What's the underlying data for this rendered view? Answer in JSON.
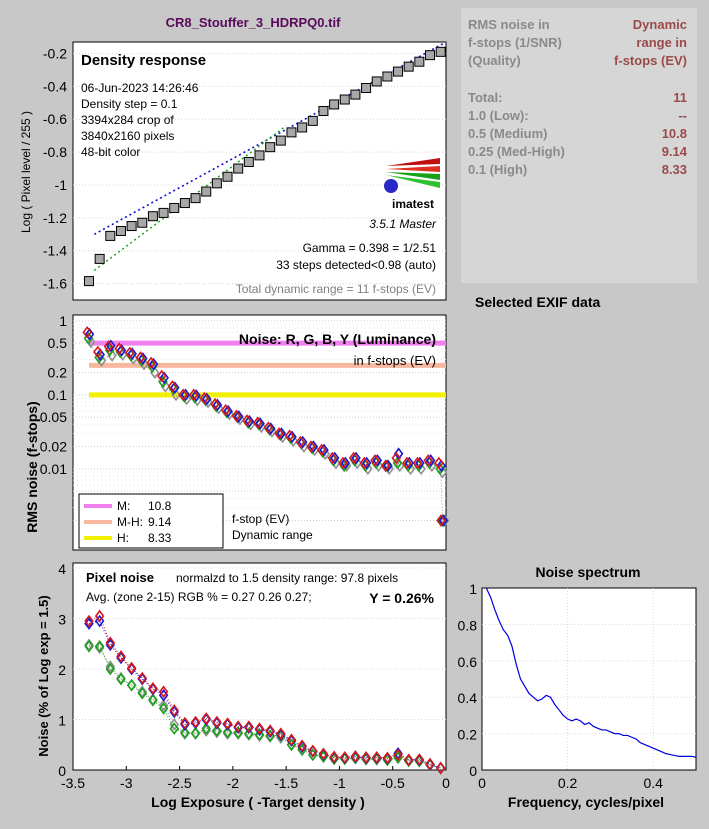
{
  "figure": {
    "filename": "CR8_Stouffer_3_HDRPQ0.tif",
    "xlabel": "Log Exposure ( -Target density )",
    "logo_text": "imatest",
    "version": "3.5.1  Master",
    "exif_heading": "Selected EXIF data"
  },
  "info_table": {
    "col1_header": [
      "RMS noise in",
      "f-stops (1/SNR)",
      "(Quality)"
    ],
    "col2_header": [
      "Dynamic",
      "range in",
      "f-stops (EV)"
    ],
    "rows": [
      {
        "label": "Total:",
        "value": "11"
      },
      {
        "label": "1.0   (Low):",
        "value": "--"
      },
      {
        "label": "0.5   (Medium)",
        "value": "10.8"
      },
      {
        "label": "0.25 (Med-High)",
        "value": "9.14"
      },
      {
        "label": "0.1   (High)",
        "value": "8.33"
      }
    ]
  },
  "chart_data": [
    {
      "type": "scatter",
      "title": "Density response",
      "ylabel": "Log ( Pixel level / 255 )",
      "xlim": [
        -3.5,
        0
      ],
      "ylim": [
        -1.7,
        -0.13
      ],
      "yticks": [
        -0.2,
        -0.4,
        -0.6,
        -0.8,
        -1,
        -1.2,
        -1.4,
        -1.6
      ],
      "annotations": [
        "06-Jun-2023 14:26:46",
        "Density step = 0.1",
        "3394x284 crop of",
        "3840x2160 pixels",
        "48-bit color"
      ],
      "gamma_text": "Gamma = 0.398 = 1/2.51",
      "steps_text": "33 steps detected<0.98 (auto)",
      "total_dr_text": "Total dynamic range = 11 f-stops (EV)",
      "x": [
        -3.35,
        -3.25,
        -3.15,
        -3.05,
        -2.95,
        -2.85,
        -2.75,
        -2.65,
        -2.55,
        -2.45,
        -2.35,
        -2.25,
        -2.15,
        -2.05,
        -1.95,
        -1.85,
        -1.75,
        -1.65,
        -1.55,
        -1.45,
        -1.35,
        -1.25,
        -1.15,
        -1.05,
        -0.95,
        -0.85,
        -0.75,
        -0.65,
        -0.55,
        -0.45,
        -0.35,
        -0.25,
        -0.15,
        -0.05
      ],
      "y": [
        -1.585,
        -1.45,
        -1.31,
        -1.28,
        -1.25,
        -1.23,
        -1.19,
        -1.17,
        -1.14,
        -1.11,
        -1.08,
        -1.04,
        -0.99,
        -0.95,
        -0.9,
        -0.86,
        -0.82,
        -0.77,
        -0.73,
        -0.68,
        -0.65,
        -0.61,
        -0.55,
        -0.51,
        -0.48,
        -0.45,
        -0.41,
        -0.37,
        -0.34,
        -0.31,
        -0.28,
        -0.25,
        -0.21,
        -0.19
      ],
      "fit_blue": {
        "x": [
          -3.3,
          0
        ],
        "y": [
          -1.3,
          -0.13
        ]
      },
      "fit_green": {
        "x": [
          -3.3,
          -1.5
        ],
        "y": [
          -1.52,
          -0.64
        ]
      }
    },
    {
      "type": "scatter",
      "title": "Noise: R, G, B, Y (Luminance)",
      "subtitle": "in f-stops (EV)",
      "ylabel": "RMS noise (f-stops)",
      "yscale": "log",
      "xlim": [
        -3.5,
        0
      ],
      "ylim": [
        0.0008,
        1.2
      ],
      "yticks": [
        1,
        0.5,
        0.2,
        0.1,
        0.05,
        0.02,
        0.01
      ],
      "ytick_labels": [
        "1",
        "0.5",
        "0.2",
        "0.1",
        "0.05",
        "0.02",
        "0.01"
      ],
      "thresholds": [
        {
          "value": 0.5,
          "color": "#f080f0"
        },
        {
          "value": 0.25,
          "color": "#f8b8a0"
        },
        {
          "value": 0.1,
          "color": "#f0f000"
        }
      ],
      "legend": [
        {
          "label": "M:",
          "value": "10.8",
          "color": "#f080f0"
        },
        {
          "label": "M-H:",
          "value": "9.14",
          "color": "#f8b8a0"
        },
        {
          "label": "H:",
          "value": "8.33",
          "color": "#f0f000"
        }
      ],
      "legend_note": [
        "f-stop (EV)",
        "Dynamic range"
      ],
      "x": [
        -3.35,
        -3.25,
        -3.15,
        -3.05,
        -2.95,
        -2.85,
        -2.75,
        -2.65,
        -2.55,
        -2.45,
        -2.35,
        -2.25,
        -2.15,
        -2.05,
        -1.95,
        -1.85,
        -1.75,
        -1.65,
        -1.55,
        -1.45,
        -1.35,
        -1.25,
        -1.15,
        -1.05,
        -0.95,
        -0.85,
        -0.75,
        -0.65,
        -0.55,
        -0.45,
        -0.35,
        -0.25,
        -0.15,
        -0.05,
        -0.03
      ],
      "series": [
        {
          "name": "R",
          "color": "#d81818",
          "values": [
            0.7,
            0.38,
            0.45,
            0.42,
            0.37,
            0.32,
            0.27,
            0.18,
            0.13,
            0.1,
            0.1,
            0.09,
            0.075,
            0.062,
            0.052,
            0.045,
            0.042,
            0.036,
            0.03,
            0.028,
            0.023,
            0.02,
            0.018,
            0.014,
            0.012,
            0.014,
            0.012,
            0.013,
            0.011,
            0.014,
            0.012,
            0.012,
            0.013,
            0.012,
            0.002
          ]
        },
        {
          "name": "G",
          "color": "#18a018",
          "values": [
            0.58,
            0.32,
            0.4,
            0.38,
            0.34,
            0.29,
            0.24,
            0.15,
            0.12,
            0.095,
            0.092,
            0.085,
            0.07,
            0.058,
            0.05,
            0.042,
            0.04,
            0.034,
            0.029,
            0.026,
            0.022,
            0.019,
            0.017,
            0.013,
            0.011,
            0.013,
            0.011,
            0.012,
            0.011,
            0.012,
            0.011,
            0.011,
            0.012,
            0.01,
            0.002
          ]
        },
        {
          "name": "B",
          "color": "#1818d8",
          "values": [
            0.66,
            0.35,
            0.46,
            0.4,
            0.36,
            0.31,
            0.26,
            0.17,
            0.125,
            0.1,
            0.098,
            0.088,
            0.073,
            0.06,
            0.051,
            0.044,
            0.041,
            0.035,
            0.03,
            0.027,
            0.023,
            0.02,
            0.018,
            0.014,
            0.012,
            0.014,
            0.012,
            0.013,
            0.011,
            0.016,
            0.012,
            0.012,
            0.013,
            0.011,
            0.002
          ]
        },
        {
          "name": "Y",
          "color": "#909090",
          "values": [
            0.52,
            0.29,
            0.34,
            0.35,
            0.31,
            0.26,
            0.2,
            0.13,
            0.1,
            0.088,
            0.085,
            0.08,
            0.066,
            0.055,
            0.047,
            0.04,
            0.037,
            0.032,
            0.027,
            0.024,
            0.02,
            0.018,
            0.016,
            0.012,
            0.011,
            0.012,
            0.01,
            0.011,
            0.01,
            0.011,
            0.01,
            0.01,
            0.011,
            0.009,
            0.002
          ]
        }
      ]
    },
    {
      "type": "scatter",
      "title": "Pixel noise",
      "subtitle": "normalzd to 1.5 density range: 97.8 pixels",
      "stats_text": "Avg. (zone 2-15) RGB % = 0.27  0.26  0.27;",
      "y_summary": "Y = 0.26%",
      "ylabel": "Noise (% of Log exp = 1.5)",
      "xlabel": "Log Exposure ( -Target density )",
      "xlim": [
        -3.5,
        0
      ],
      "ylim": [
        0,
        4.1
      ],
      "xticks": [
        -3.5,
        -3,
        -2.5,
        -2,
        -1.5,
        -1,
        -0.5,
        0
      ],
      "yticks": [
        0,
        1,
        2,
        3,
        4
      ],
      "x": [
        -3.35,
        -3.25,
        -3.15,
        -3.05,
        -2.95,
        -2.85,
        -2.75,
        -2.65,
        -2.55,
        -2.45,
        -2.35,
        -2.25,
        -2.15,
        -2.05,
        -1.95,
        -1.85,
        -1.75,
        -1.65,
        -1.55,
        -1.45,
        -1.35,
        -1.25,
        -1.15,
        -1.05,
        -0.95,
        -0.85,
        -0.75,
        -0.65,
        -0.55,
        -0.45,
        -0.35,
        -0.25,
        -0.15,
        -0.05
      ],
      "series": [
        {
          "name": "R",
          "color": "#d81818",
          "values": [
            2.95,
            3.05,
            2.52,
            2.25,
            2.02,
            1.82,
            1.62,
            1.55,
            1.18,
            0.93,
            0.95,
            1.02,
            0.95,
            0.92,
            0.86,
            0.86,
            0.82,
            0.78,
            0.72,
            0.6,
            0.48,
            0.38,
            0.32,
            0.26,
            0.25,
            0.27,
            0.25,
            0.25,
            0.24,
            0.3,
            0.2,
            0.21,
            0.12,
            0.04
          ]
        },
        {
          "name": "G",
          "color": "#18a018",
          "values": [
            2.45,
            2.45,
            2.0,
            1.8,
            1.68,
            1.52,
            1.38,
            1.22,
            0.82,
            0.74,
            0.73,
            0.82,
            0.78,
            0.75,
            0.74,
            0.72,
            0.7,
            0.68,
            0.68,
            0.5,
            0.4,
            0.3,
            0.27,
            0.22,
            0.22,
            0.24,
            0.22,
            0.22,
            0.2,
            0.25,
            0.18,
            0.18,
            0.1,
            0.04
          ]
        },
        {
          "name": "B",
          "color": "#1818d8",
          "values": [
            2.9,
            2.95,
            2.48,
            2.22,
            2.0,
            1.8,
            1.6,
            1.48,
            1.15,
            0.9,
            0.93,
            1.0,
            0.93,
            0.9,
            0.84,
            0.84,
            0.8,
            0.76,
            0.7,
            0.58,
            0.46,
            0.37,
            0.31,
            0.25,
            0.24,
            0.26,
            0.24,
            0.24,
            0.23,
            0.33,
            0.2,
            0.2,
            0.11,
            0.04
          ]
        },
        {
          "name": "Y",
          "color": "#909090",
          "values": [
            2.48,
            2.42,
            2.05,
            1.82,
            1.68,
            1.55,
            1.4,
            1.28,
            0.9,
            0.72,
            0.72,
            0.78,
            0.75,
            0.72,
            0.72,
            0.7,
            0.68,
            0.66,
            0.64,
            0.5,
            0.4,
            0.3,
            0.26,
            0.22,
            0.22,
            0.23,
            0.21,
            0.21,
            0.2,
            0.24,
            0.18,
            0.17,
            0.1,
            0.03
          ]
        }
      ]
    },
    {
      "type": "line",
      "title": "Noise spectrum",
      "xlabel": "Frequency, cycles/pixel",
      "xlim": [
        0,
        0.5
      ],
      "ylim": [
        0,
        1
      ],
      "xticks": [
        0,
        0.2,
        0.4
      ],
      "yticks": [
        0,
        0.2,
        0.4,
        0.6,
        0.8,
        1
      ],
      "series": [
        {
          "name": "",
          "color": "#0000e0",
          "x": [
            0.01,
            0.02,
            0.03,
            0.04,
            0.05,
            0.06,
            0.07,
            0.08,
            0.09,
            0.1,
            0.11,
            0.12,
            0.13,
            0.14,
            0.15,
            0.16,
            0.17,
            0.18,
            0.19,
            0.2,
            0.21,
            0.22,
            0.23,
            0.24,
            0.25,
            0.26,
            0.27,
            0.28,
            0.29,
            0.3,
            0.31,
            0.32,
            0.33,
            0.34,
            0.35,
            0.36,
            0.37,
            0.38,
            0.39,
            0.4,
            0.41,
            0.42,
            0.43,
            0.44,
            0.45,
            0.46,
            0.47,
            0.48,
            0.49,
            0.5
          ],
          "y": [
            1.0,
            0.95,
            0.88,
            0.82,
            0.77,
            0.74,
            0.68,
            0.58,
            0.5,
            0.46,
            0.42,
            0.4,
            0.38,
            0.39,
            0.41,
            0.4,
            0.36,
            0.33,
            0.3,
            0.28,
            0.27,
            0.28,
            0.27,
            0.25,
            0.26,
            0.24,
            0.23,
            0.22,
            0.22,
            0.21,
            0.2,
            0.2,
            0.19,
            0.19,
            0.18,
            0.17,
            0.15,
            0.14,
            0.13,
            0.12,
            0.11,
            0.1,
            0.09,
            0.085,
            0.08,
            0.075,
            0.075,
            0.075,
            0.075,
            0.07
          ]
        }
      ]
    }
  ]
}
